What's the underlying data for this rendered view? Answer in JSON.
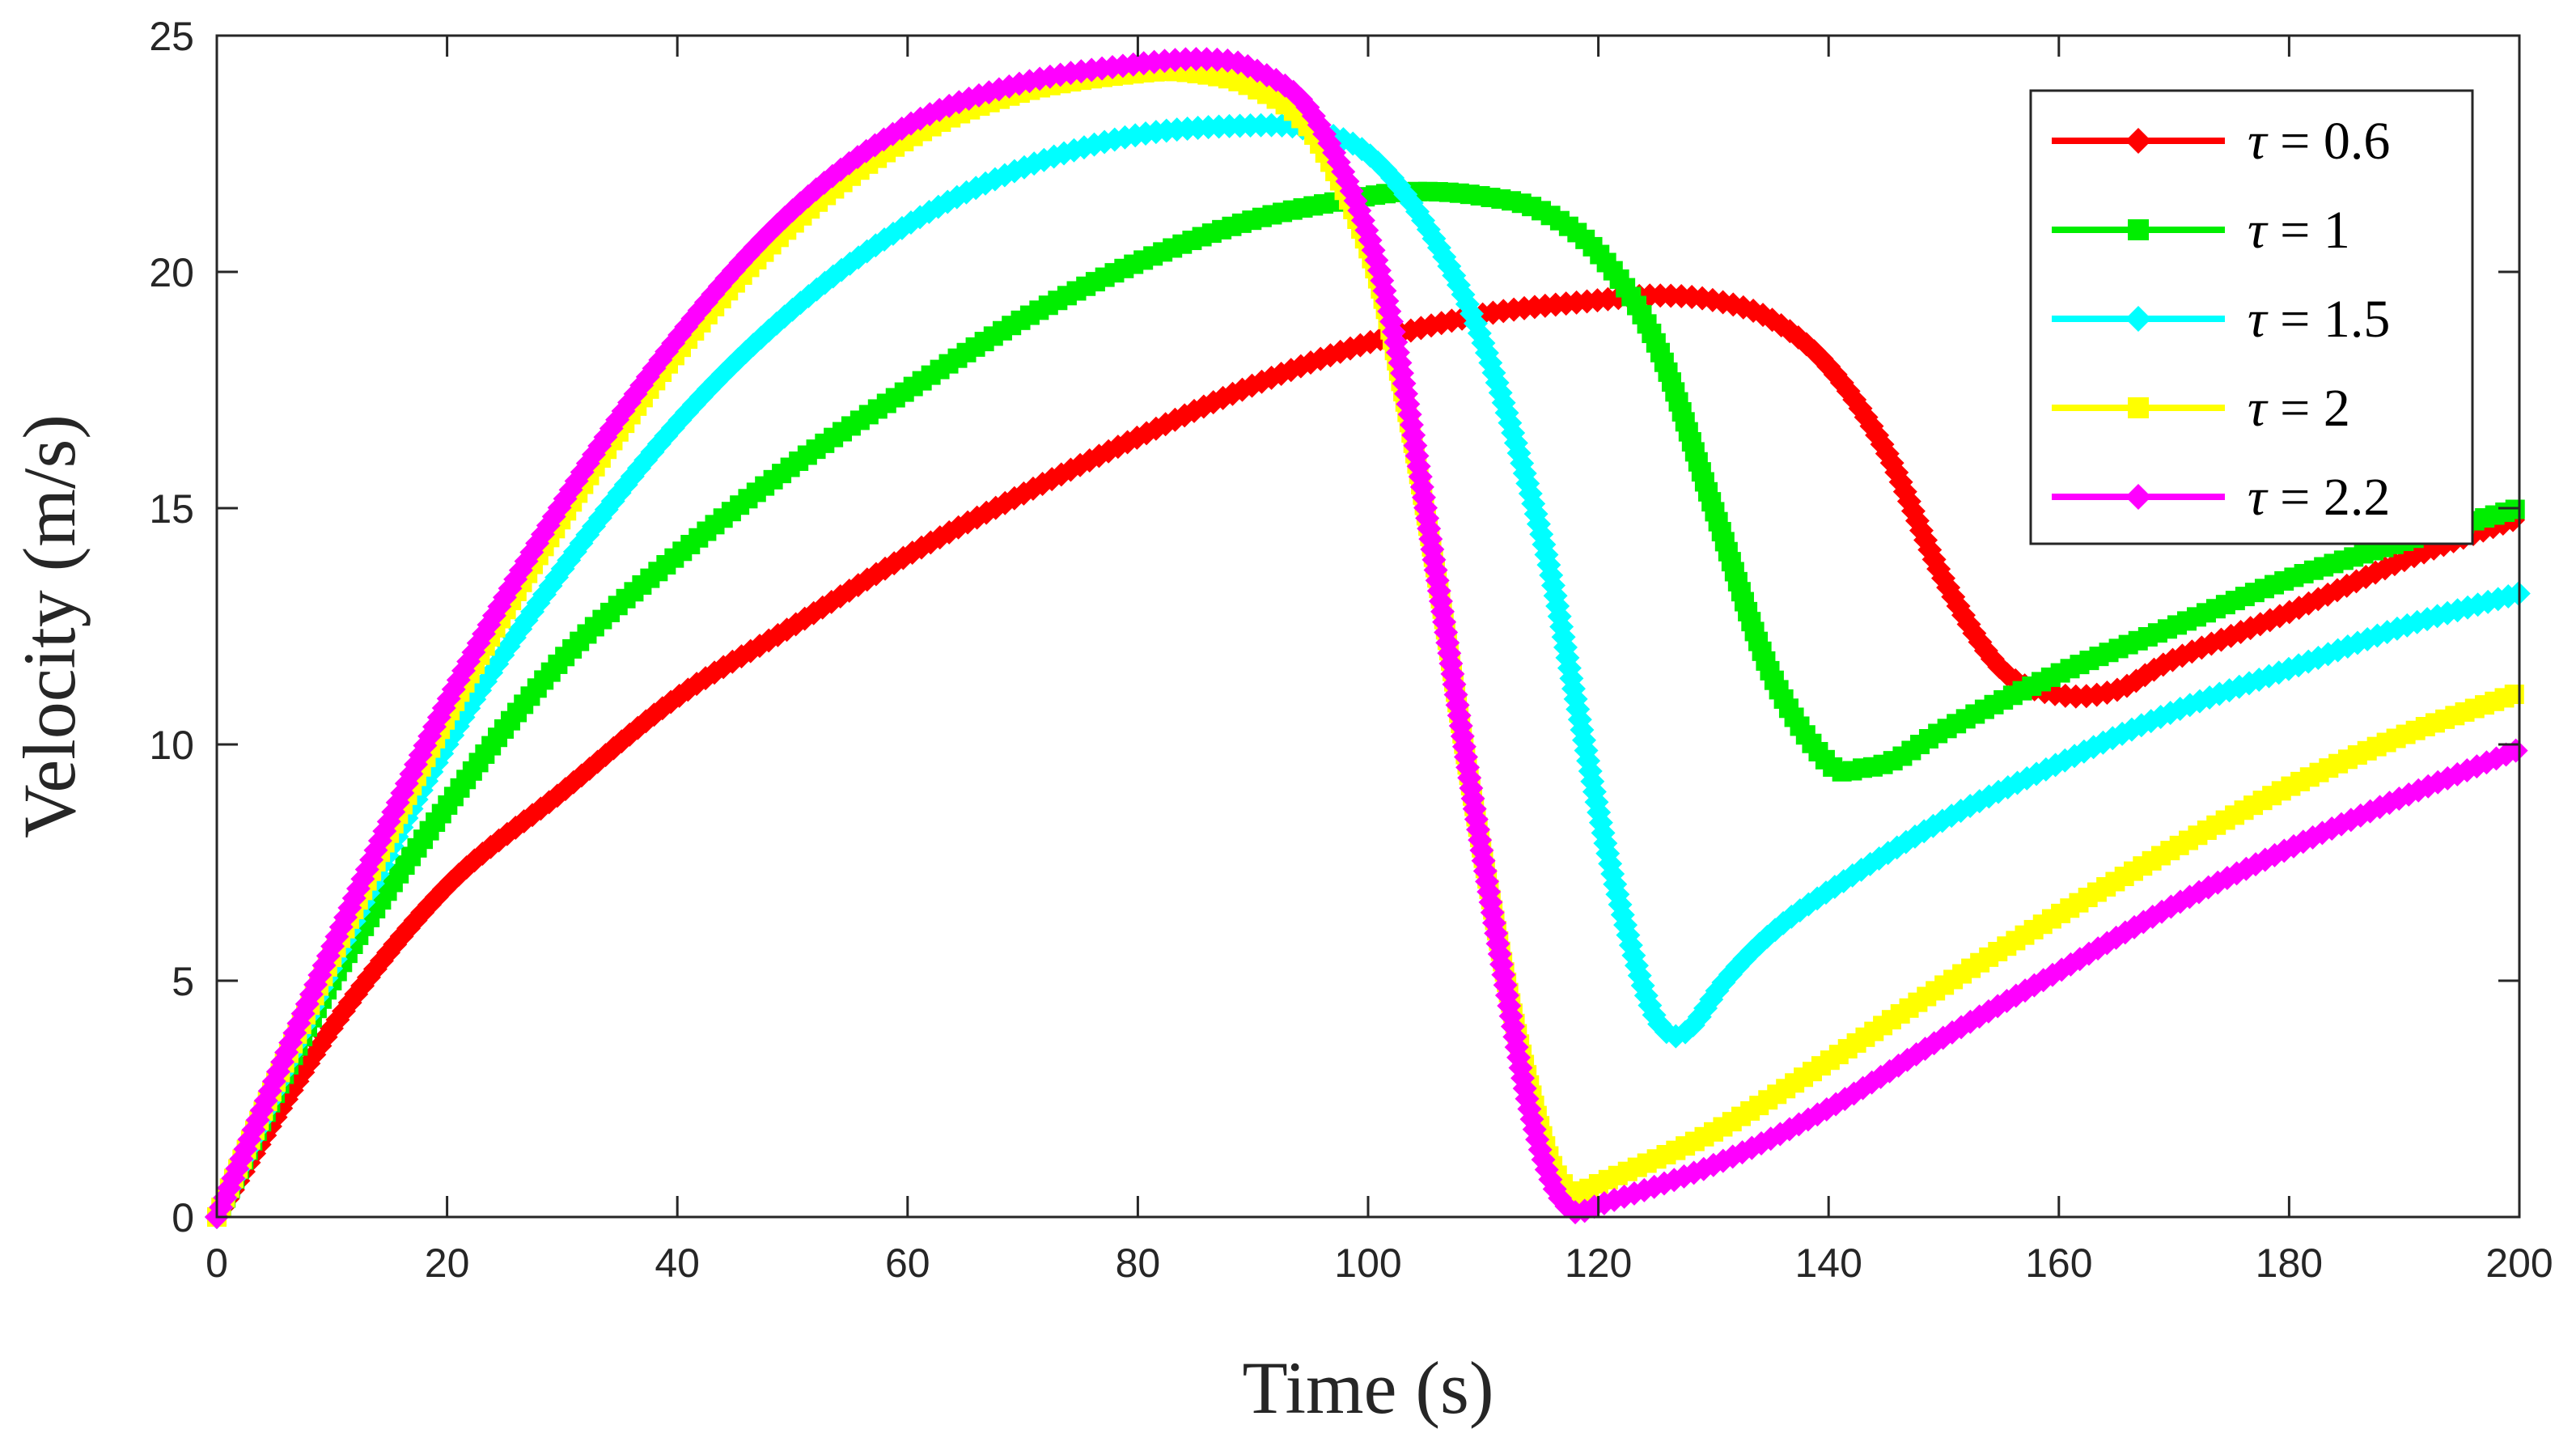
{
  "chart_data": {
    "type": "line",
    "title": "",
    "xlabel": "Time (s)",
    "ylabel": "Velocity (m/s)",
    "xlim": [
      0,
      200
    ],
    "ylim": [
      0,
      25
    ],
    "xticks": [
      0,
      20,
      40,
      60,
      80,
      100,
      120,
      140,
      160,
      180,
      200
    ],
    "yticks": [
      0,
      5,
      10,
      15,
      20,
      25
    ],
    "grid": false,
    "legend_position": "top-right",
    "series": [
      {
        "name": "τ = 0.6",
        "tau_symbol": "τ",
        "tau_value": "= 0.6",
        "color": "#ff0000",
        "marker": "diamond",
        "x": [
          0,
          10,
          20,
          30,
          40,
          50,
          60,
          70,
          80,
          90,
          100,
          110,
          120,
          125,
          130,
          135,
          140,
          145,
          150,
          155,
          160,
          165,
          170,
          180,
          190,
          200
        ],
        "y": [
          0,
          4.0,
          7.0,
          9.0,
          11.0,
          12.5,
          14.0,
          15.3,
          16.5,
          17.6,
          18.5,
          19.1,
          19.4,
          19.5,
          19.4,
          19.0,
          18.0,
          16.2,
          13.5,
          11.6,
          11.05,
          11.15,
          11.8,
          12.8,
          13.9,
          14.8
        ]
      },
      {
        "name": "τ = 1",
        "tau_symbol": "τ",
        "tau_value": "= 1",
        "color": "#00ee00",
        "marker": "square",
        "x": [
          0,
          10,
          20,
          30,
          40,
          50,
          60,
          70,
          80,
          90,
          100,
          105,
          110,
          115,
          120,
          125,
          130,
          135,
          140,
          143,
          146,
          150,
          160,
          170,
          180,
          190,
          200
        ],
        "y": [
          0,
          5.0,
          8.7,
          11.8,
          14.0,
          15.9,
          17.5,
          19.0,
          20.2,
          21.1,
          21.6,
          21.7,
          21.6,
          21.3,
          20.4,
          18.5,
          15.0,
          11.5,
          9.6,
          9.5,
          9.7,
          10.3,
          11.5,
          12.5,
          13.5,
          14.3,
          15.0
        ]
      },
      {
        "name": "τ = 1.5",
        "tau_symbol": "τ",
        "tau_value": "= 1.5",
        "color": "#00ffff",
        "marker": "diamond",
        "x": [
          0,
          10,
          20,
          30,
          40,
          50,
          60,
          70,
          80,
          90,
          95,
          100,
          105,
          110,
          115,
          118,
          121,
          124,
          126,
          128,
          131,
          135,
          140,
          150,
          160,
          170,
          180,
          190,
          200
        ],
        "y": [
          0,
          5.3,
          10.0,
          13.7,
          16.8,
          19.2,
          21.0,
          22.2,
          22.9,
          23.1,
          23.0,
          22.5,
          21.0,
          18.5,
          14.5,
          11.0,
          7.5,
          4.8,
          3.9,
          4.0,
          5.0,
          6.0,
          6.9,
          8.4,
          9.6,
          10.7,
          11.6,
          12.5,
          13.2
        ]
      },
      {
        "name": "τ = 2",
        "tau_symbol": "τ",
        "tau_value": "= 2",
        "color": "#ffff00",
        "marker": "square",
        "x": [
          0,
          10,
          20,
          30,
          40,
          50,
          60,
          70,
          80,
          85,
          90,
          95,
          100,
          103,
          106,
          109,
          112,
          114,
          116,
          118,
          120,
          130,
          140,
          150,
          160,
          170,
          180,
          190,
          200
        ],
        "y": [
          0,
          5.5,
          10.6,
          14.8,
          18.3,
          21.0,
          22.8,
          23.8,
          24.2,
          24.2,
          23.9,
          23.0,
          20.5,
          17.5,
          13.5,
          9.0,
          5.0,
          2.8,
          1.1,
          0.5,
          0.7,
          1.8,
          3.3,
          4.9,
          6.4,
          7.8,
          9.1,
          10.2,
          11.1
        ]
      },
      {
        "name": "τ = 2.2",
        "tau_symbol": "τ",
        "tau_value": "= 2.2",
        "color": "#ff00ff",
        "marker": "diamond",
        "x": [
          0,
          10,
          20,
          30,
          40,
          50,
          60,
          70,
          80,
          86,
          90,
          95,
          100,
          103,
          106,
          109,
          112,
          114,
          116,
          118,
          120,
          130,
          140,
          150,
          160,
          170,
          180,
          190,
          200
        ],
        "y": [
          0,
          5.7,
          10.9,
          15.1,
          18.6,
          21.3,
          23.1,
          24.0,
          24.4,
          24.5,
          24.3,
          23.4,
          20.8,
          17.8,
          13.5,
          9.0,
          4.8,
          2.3,
          0.7,
          0.1,
          0.25,
          1.1,
          2.3,
          3.8,
          5.2,
          6.6,
          7.8,
          8.9,
          9.9
        ]
      }
    ]
  }
}
